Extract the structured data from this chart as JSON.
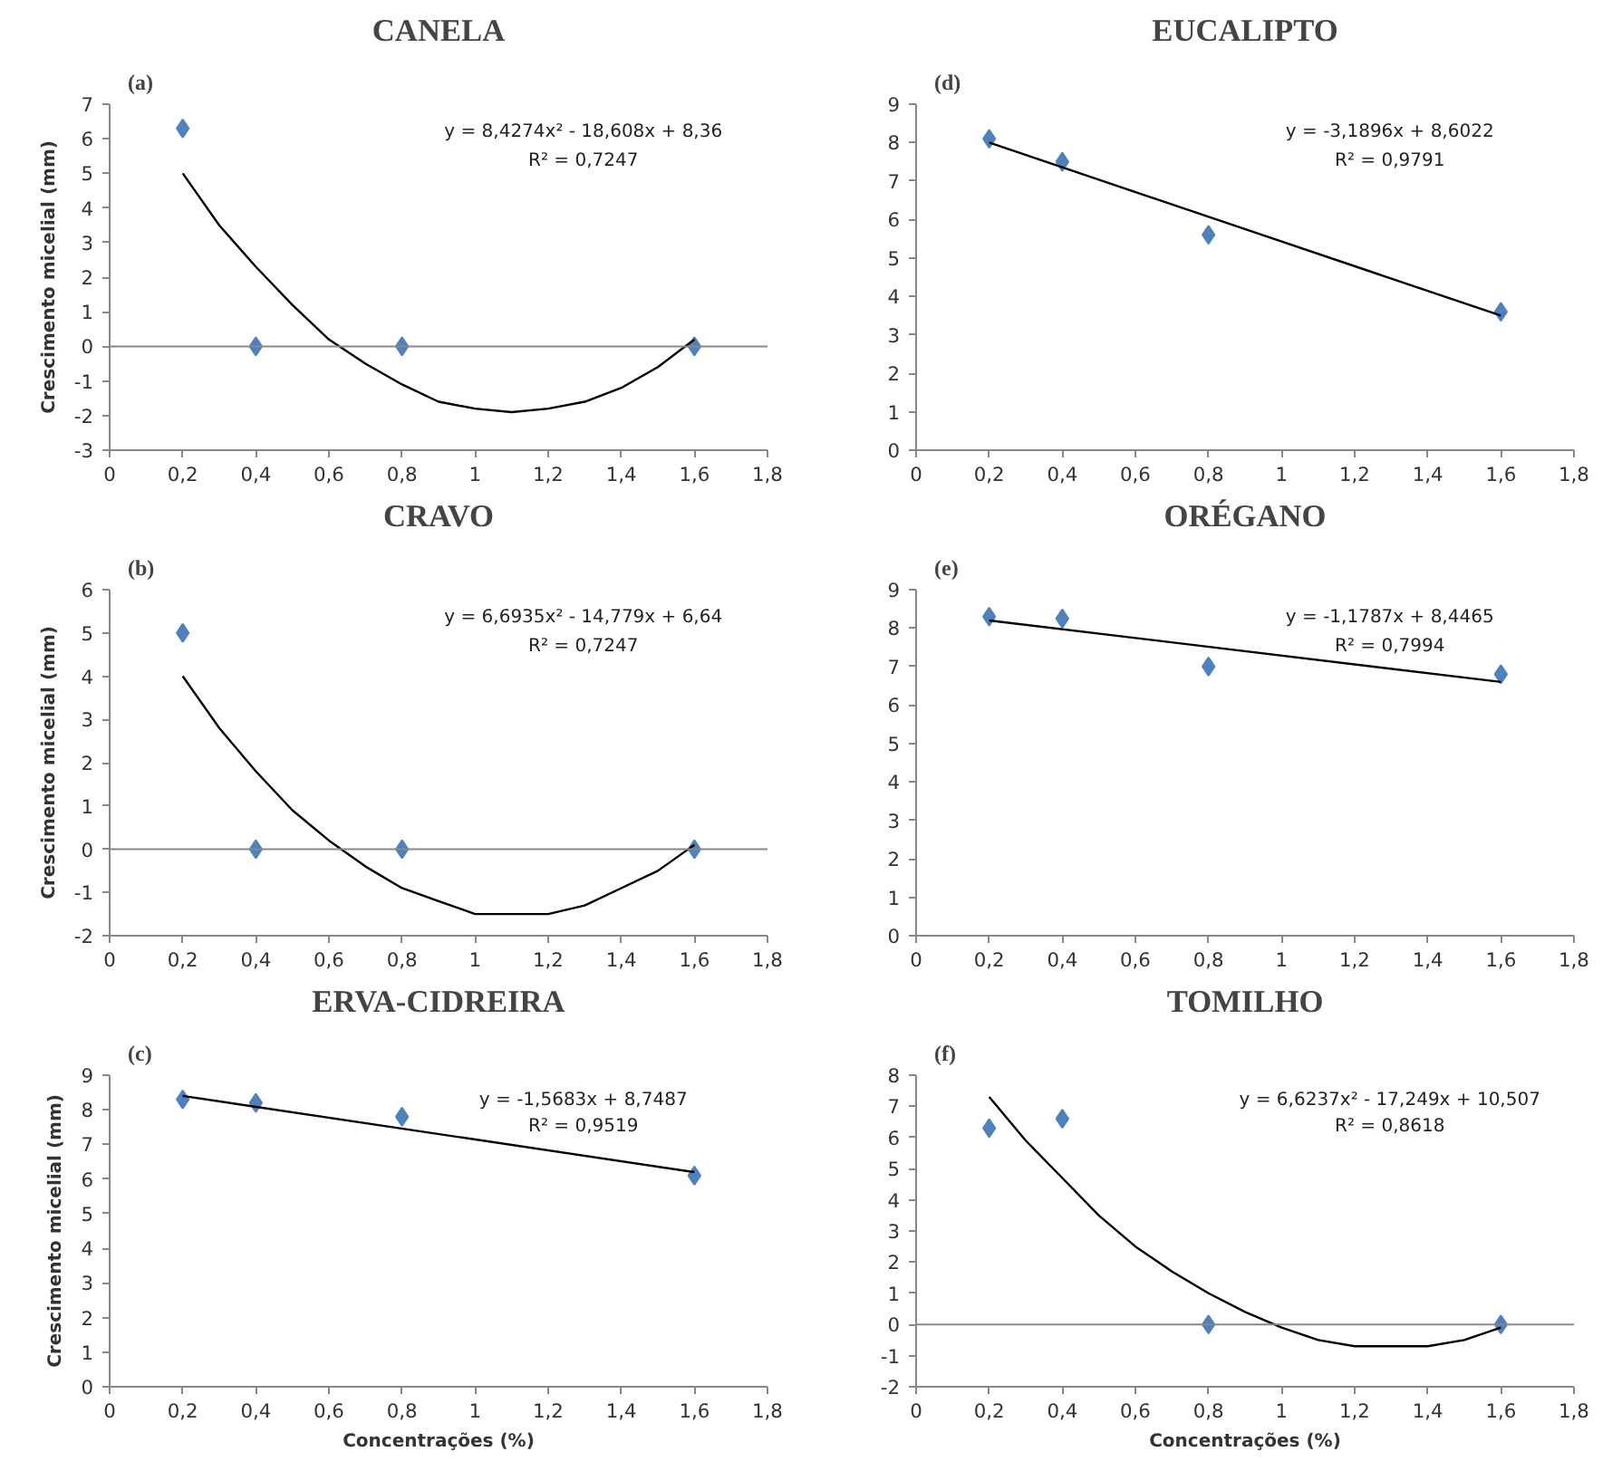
{
  "chart_data": [
    {
      "type": "scatter",
      "title": "CANELA",
      "ylabel": "Crescimento micelial (mm)",
      "annotations": [
        "(a)",
        "y = 8,4274x² - 18,608x + 8,36",
        "R² = 0,7247"
      ],
      "ref_lines": [
        {
          "axis": "y",
          "value": 0,
          "color": "#888888"
        }
      ],
      "xlim": [
        0,
        1.8
      ],
      "xticks": [
        0,
        {
          "value": 0.2,
          "label": "0,2"
        },
        {
          "value": 0.4,
          "label": "0,4"
        },
        {
          "value": 0.6,
          "label": "0,6"
        },
        {
          "value": 0.8,
          "label": "0,8"
        },
        1,
        {
          "value": 1.2,
          "label": "1,2"
        },
        {
          "value": 1.4,
          "label": "1,4"
        },
        {
          "value": 1.6,
          "label": "1,6"
        },
        {
          "value": 1.8,
          "label": "1,8"
        }
      ],
      "ylim": [
        -3,
        7
      ],
      "yticks": [
        -3,
        -2,
        -1,
        0,
        1,
        2,
        3,
        4,
        5,
        6,
        7
      ],
      "series": [
        {
          "type": "scatter",
          "marker": "diamond",
          "color": "#4f81bd",
          "x": [
            0.2,
            0.4,
            0.8,
            1.6
          ],
          "values": [
            6.3,
            0,
            0,
            0
          ]
        },
        {
          "type": "line",
          "marker": "none",
          "color": "#000000",
          "x": [
            0.2,
            0.3,
            0.4,
            0.5,
            0.6,
            0.7,
            0.8,
            0.9,
            1.0,
            1.1,
            1.2,
            1.3,
            1.4,
            1.5,
            1.6
          ],
          "values": [
            5.0,
            3.5,
            2.3,
            1.2,
            0.2,
            -0.5,
            -1.1,
            -1.6,
            -1.8,
            -1.9,
            -1.8,
            -1.6,
            -1.2,
            -0.6,
            0.2
          ]
        }
      ]
    },
    {
      "type": "scatter",
      "title": "EUCALIPTO",
      "annotations": [
        "(d)",
        "y = -3,1896x + 8,6022",
        "R² = 0,9791"
      ],
      "xlim": [
        0,
        1.8
      ],
      "xticks": [
        0,
        {
          "value": 0.2,
          "label": "0,2"
        },
        {
          "value": 0.4,
          "label": "0,4"
        },
        {
          "value": 0.6,
          "label": "0,6"
        },
        {
          "value": 0.8,
          "label": "0,8"
        },
        1,
        {
          "value": 1.2,
          "label": "1,2"
        },
        {
          "value": 1.4,
          "label": "1,4"
        },
        {
          "value": 1.6,
          "label": "1,6"
        },
        {
          "value": 1.8,
          "label": "1,8"
        }
      ],
      "ylim": [
        0,
        9
      ],
      "yticks": [
        0,
        1,
        2,
        3,
        4,
        5,
        6,
        7,
        8,
        9
      ],
      "series": [
        {
          "type": "scatter",
          "marker": "diamond",
          "color": "#4f81bd",
          "x": [
            0.2,
            0.4,
            0.8,
            1.6
          ],
          "values": [
            8.1,
            7.5,
            5.6,
            3.6
          ]
        },
        {
          "type": "line",
          "marker": "none",
          "color": "#000000",
          "x": [
            0.2,
            1.6
          ],
          "values": [
            8.0,
            3.5
          ]
        }
      ]
    },
    {
      "type": "scatter",
      "title": "CRAVO",
      "ylabel": "Crescimento micelial (mm)",
      "annotations": [
        "(b)",
        "y = 6,6935x² - 14,779x + 6,64",
        "R² = 0,7247"
      ],
      "ref_lines": [
        {
          "axis": "y",
          "value": 0,
          "color": "#888888"
        }
      ],
      "xlim": [
        0,
        1.8
      ],
      "xticks": [
        0,
        {
          "value": 0.2,
          "label": "0,2"
        },
        {
          "value": 0.4,
          "label": "0,4"
        },
        {
          "value": 0.6,
          "label": "0,6"
        },
        {
          "value": 0.8,
          "label": "0,8"
        },
        1,
        {
          "value": 1.2,
          "label": "1,2"
        },
        {
          "value": 1.4,
          "label": "1,4"
        },
        {
          "value": 1.6,
          "label": "1,6"
        },
        {
          "value": 1.8,
          "label": "1,8"
        }
      ],
      "ylim": [
        -2,
        6
      ],
      "yticks": [
        -2,
        -1,
        0,
        1,
        2,
        3,
        4,
        5,
        6
      ],
      "series": [
        {
          "type": "scatter",
          "marker": "diamond",
          "color": "#4f81bd",
          "x": [
            0.2,
            0.4,
            0.8,
            1.6
          ],
          "values": [
            5.0,
            0,
            0,
            0
          ]
        },
        {
          "type": "line",
          "marker": "none",
          "color": "#000000",
          "x": [
            0.2,
            0.3,
            0.4,
            0.5,
            0.6,
            0.7,
            0.8,
            0.9,
            1.0,
            1.1,
            1.2,
            1.3,
            1.4,
            1.5,
            1.6
          ],
          "values": [
            4.0,
            2.8,
            1.8,
            0.9,
            0.2,
            -0.4,
            -0.9,
            -1.2,
            -1.5,
            -1.5,
            -1.5,
            -1.3,
            -0.9,
            -0.5,
            0.1
          ]
        }
      ]
    },
    {
      "type": "scatter",
      "title": "ORÉGANO",
      "annotations": [
        "(e)",
        "y = -1,1787x + 8,4465",
        "R² = 0,7994"
      ],
      "xlim": [
        0,
        1.8
      ],
      "xticks": [
        0,
        {
          "value": 0.2,
          "label": "0,2"
        },
        {
          "value": 0.4,
          "label": "0,4"
        },
        {
          "value": 0.6,
          "label": "0,6"
        },
        {
          "value": 0.8,
          "label": "0,8"
        },
        1,
        {
          "value": 1.2,
          "label": "1,2"
        },
        {
          "value": 1.4,
          "label": "1,4"
        },
        {
          "value": 1.6,
          "label": "1,6"
        },
        {
          "value": 1.8,
          "label": "1,8"
        }
      ],
      "ylim": [
        0,
        9
      ],
      "yticks": [
        0,
        1,
        2,
        3,
        4,
        5,
        6,
        7,
        8,
        9
      ],
      "series": [
        {
          "type": "scatter",
          "marker": "diamond",
          "color": "#4f81bd",
          "x": [
            0.2,
            0.4,
            0.8,
            1.6
          ],
          "values": [
            8.3,
            8.25,
            7.0,
            6.8
          ]
        },
        {
          "type": "line",
          "marker": "none",
          "color": "#000000",
          "x": [
            0.2,
            1.6
          ],
          "values": [
            8.2,
            6.6
          ]
        }
      ]
    },
    {
      "type": "scatter",
      "title": "ERVA-CIDREIRA",
      "ylabel": "Crescimento micelial (mm)",
      "xlabel": "Concentrações (%)",
      "annotations": [
        "(c)",
        "y = -1,5683x + 8,7487",
        "R² = 0,9519"
      ],
      "xlim": [
        0,
        1.8
      ],
      "xticks": [
        0,
        {
          "value": 0.2,
          "label": "0,2"
        },
        {
          "value": 0.4,
          "label": "0,4"
        },
        {
          "value": 0.6,
          "label": "0,6"
        },
        {
          "value": 0.8,
          "label": "0,8"
        },
        1,
        {
          "value": 1.2,
          "label": "1,2"
        },
        {
          "value": 1.4,
          "label": "1,4"
        },
        {
          "value": 1.6,
          "label": "1,6"
        },
        {
          "value": 1.8,
          "label": "1,8"
        }
      ],
      "ylim": [
        0,
        9
      ],
      "yticks": [
        0,
        1,
        2,
        3,
        4,
        5,
        6,
        7,
        8,
        9
      ],
      "series": [
        {
          "type": "scatter",
          "marker": "diamond",
          "color": "#4f81bd",
          "x": [
            0.2,
            0.4,
            0.8,
            1.6
          ],
          "values": [
            8.3,
            8.2,
            7.8,
            6.1
          ]
        },
        {
          "type": "line",
          "marker": "none",
          "color": "#000000",
          "x": [
            0.2,
            1.6
          ],
          "values": [
            8.4,
            6.2
          ]
        }
      ]
    },
    {
      "type": "scatter",
      "title": "TOMILHO",
      "xlabel": "Concentrações (%)",
      "annotations": [
        "(f)",
        "y = 6,6237x² - 17,249x + 10,507",
        "R² = 0,8618"
      ],
      "ref_lines": [
        {
          "axis": "y",
          "value": 0,
          "color": "#888888"
        }
      ],
      "xlim": [
        0,
        1.8
      ],
      "xticks": [
        0,
        {
          "value": 0.2,
          "label": "0,2"
        },
        {
          "value": 0.4,
          "label": "0,4"
        },
        {
          "value": 0.6,
          "label": "0,6"
        },
        {
          "value": 0.8,
          "label": "0,8"
        },
        1,
        {
          "value": 1.2,
          "label": "1,2"
        },
        {
          "value": 1.4,
          "label": "1,4"
        },
        {
          "value": 1.6,
          "label": "1,6"
        },
        {
          "value": 1.8,
          "label": "1,8"
        }
      ],
      "ylim": [
        -2,
        8
      ],
      "yticks": [
        -2,
        -1,
        0,
        1,
        2,
        3,
        4,
        5,
        6,
        7,
        8
      ],
      "series": [
        {
          "type": "scatter",
          "marker": "diamond",
          "color": "#4f81bd",
          "x": [
            0.2,
            0.4,
            0.8,
            1.6
          ],
          "values": [
            6.3,
            6.6,
            0,
            0
          ]
        },
        {
          "type": "line",
          "marker": "none",
          "color": "#000000",
          "x": [
            0.2,
            0.3,
            0.4,
            0.5,
            0.6,
            0.7,
            0.8,
            0.9,
            1.0,
            1.1,
            1.2,
            1.3,
            1.4,
            1.5,
            1.6
          ],
          "values": [
            7.3,
            5.9,
            4.7,
            3.5,
            2.5,
            1.7,
            1.0,
            0.4,
            -0.1,
            -0.5,
            -0.7,
            -0.7,
            -0.7,
            -0.5,
            -0.1
          ]
        }
      ]
    }
  ]
}
